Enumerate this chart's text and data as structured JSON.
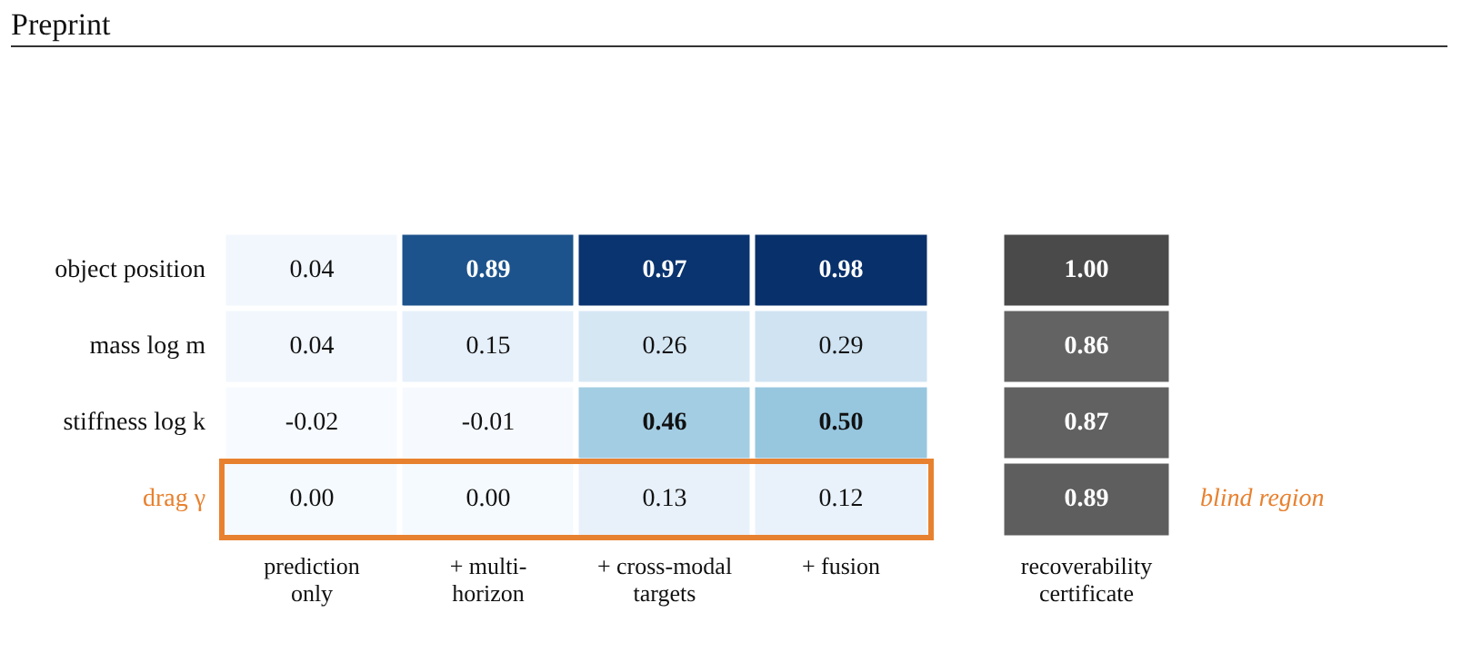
{
  "chart_data": [
    {
      "type": "heatmap",
      "annotations": [
        "Preprint",
        "blind region"
      ],
      "categories": [
        "prediction\nonly",
        "+ multi-\nhorizon",
        "+ cross-modal\ntargets",
        "+ fusion"
      ],
      "y_categories": [
        "object position",
        "mass log m",
        "stiffness log k",
        "drag γ"
      ],
      "cells": [
        [
          0.04,
          0.89,
          0.97,
          0.98
        ],
        [
          0.04,
          0.15,
          0.26,
          0.29
        ],
        [
          -0.02,
          -0.01,
          0.46,
          0.5
        ],
        [
          0,
          0,
          0.13,
          0.12
        ]
      ],
      "cell_labels": [
        [
          "0.04",
          "0.89",
          "0.97",
          "0.98"
        ],
        [
          "0.04",
          "0.15",
          "0.26",
          "0.29"
        ],
        [
          "-0.02",
          "-0.01",
          "0.46",
          "0.50"
        ],
        [
          "0.00",
          "0.00",
          "0.13",
          "0.12"
        ]
      ],
      "colors": [
        "#f7fbff",
        "#deebf7",
        "#9ecae1",
        "#4292c6",
        "#08306b"
      ],
      "data_labels": true
    },
    {
      "type": "heatmap",
      "categories": [
        "recoverability\ncertificate"
      ],
      "y_categories": [
        null,
        null,
        null,
        null
      ],
      "cells": [
        [
          1
        ],
        [
          0.86
        ],
        [
          0.87
        ],
        [
          0.89
        ]
      ],
      "cell_labels": [
        [
          "1.00"
        ],
        [
          "0.86"
        ],
        [
          "0.87"
        ],
        [
          "0.89"
        ]
      ],
      "colors": [
        "#636363",
        "#4a4a4a"
      ],
      "data_labels": true
    }
  ]
}
